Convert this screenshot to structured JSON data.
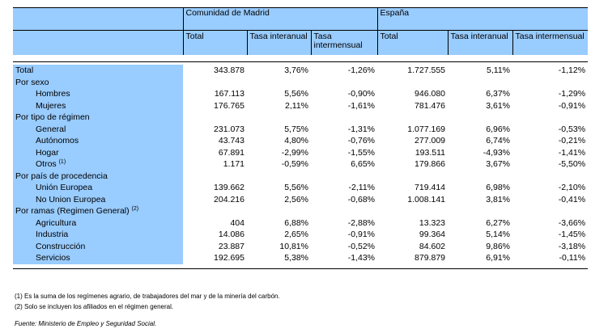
{
  "header": {
    "group1": "Comunidad de Madrid",
    "group2": "España",
    "columns": [
      "Total",
      "Tasa interanual",
      "Tasa intermensual",
      "Total",
      "Tasa interanual",
      "Tasa intermensual"
    ]
  },
  "rows": [
    {
      "label": "Total",
      "indent": false,
      "values": [
        "343.878",
        "3,76%",
        "-1,26%",
        "1.727.555",
        "5,11%",
        "-1,12%"
      ]
    },
    {
      "label": "Por sexo",
      "indent": false,
      "values": [
        "",
        "",
        "",
        "",
        "",
        ""
      ]
    },
    {
      "label": "Hombres",
      "indent": true,
      "values": [
        "167.113",
        "5,56%",
        "-0,90%",
        "946.080",
        "6,37%",
        "-1,29%"
      ]
    },
    {
      "label": "Mujeres",
      "indent": true,
      "values": [
        "176.765",
        "2,11%",
        "-1,61%",
        "781.476",
        "3,61%",
        "-0,91%"
      ]
    },
    {
      "label": "Por tipo de régimen",
      "indent": false,
      "values": [
        "",
        "",
        "",
        "",
        "",
        ""
      ]
    },
    {
      "label": "General",
      "indent": true,
      "values": [
        "231.073",
        "5,75%",
        "-1,31%",
        "1.077.169",
        "6,96%",
        "-0,53%"
      ]
    },
    {
      "label": "Autónomos",
      "indent": true,
      "values": [
        "43.743",
        "4,80%",
        "-0,76%",
        "277.009",
        "6,74%",
        "-0,21%"
      ]
    },
    {
      "label": "Hogar",
      "indent": true,
      "values": [
        "67.891",
        "-2,99%",
        "-1,55%",
        "193.511",
        "-4,93%",
        "-1,41%"
      ]
    },
    {
      "label": "Otros",
      "sup": "(1)",
      "indent": true,
      "values": [
        "1.171",
        "-0,59%",
        "6,65%",
        "179.866",
        "3,67%",
        "-5,50%"
      ]
    },
    {
      "label": "Por país de procedencia",
      "indent": false,
      "values": [
        "",
        "",
        "",
        "",
        "",
        ""
      ]
    },
    {
      "label": "Unión Europea",
      "indent": true,
      "values": [
        "139.662",
        "5,56%",
        "-2,11%",
        "719.414",
        "6,98%",
        "-2,10%"
      ]
    },
    {
      "label": "No Union Europea",
      "indent": true,
      "values": [
        "204.216",
        "2,56%",
        "-0,68%",
        "1.008.141",
        "3,81%",
        "-0,41%"
      ]
    },
    {
      "label": "Por ramas (Regimen General)",
      "sup": "(2)",
      "indent": false,
      "values": [
        "",
        "",
        "",
        "",
        "",
        ""
      ]
    },
    {
      "label": "Agricultura",
      "indent": true,
      "values": [
        "404",
        "6,88%",
        "-2,88%",
        "13.323",
        "6,27%",
        "-3,66%"
      ]
    },
    {
      "label": "Industria",
      "indent": true,
      "values": [
        "14.086",
        "2,65%",
        "-0,91%",
        "99.364",
        "5,14%",
        "-1,45%"
      ]
    },
    {
      "label": "Construcción",
      "indent": true,
      "values": [
        "23.887",
        "10,81%",
        "-0,52%",
        "84.602",
        "9,86%",
        "-3,18%"
      ]
    },
    {
      "label": "Servicios",
      "indent": true,
      "values": [
        "192.695",
        "5,38%",
        "-1,43%",
        "879.879",
        "6,91%",
        "-0,11%"
      ]
    }
  ],
  "footnotes": [
    "(1) Es la suma de los regímenes  agrario, de trabajadores del mar y de la minería del carbón.",
    "(2) Solo se incluyen los afiliados en el régimen general."
  ],
  "source": "Fuente: Ministerio de Empleo y Seguridad Social.",
  "colors": {
    "header_fill": "#99ccff",
    "rule": "#000000"
  }
}
